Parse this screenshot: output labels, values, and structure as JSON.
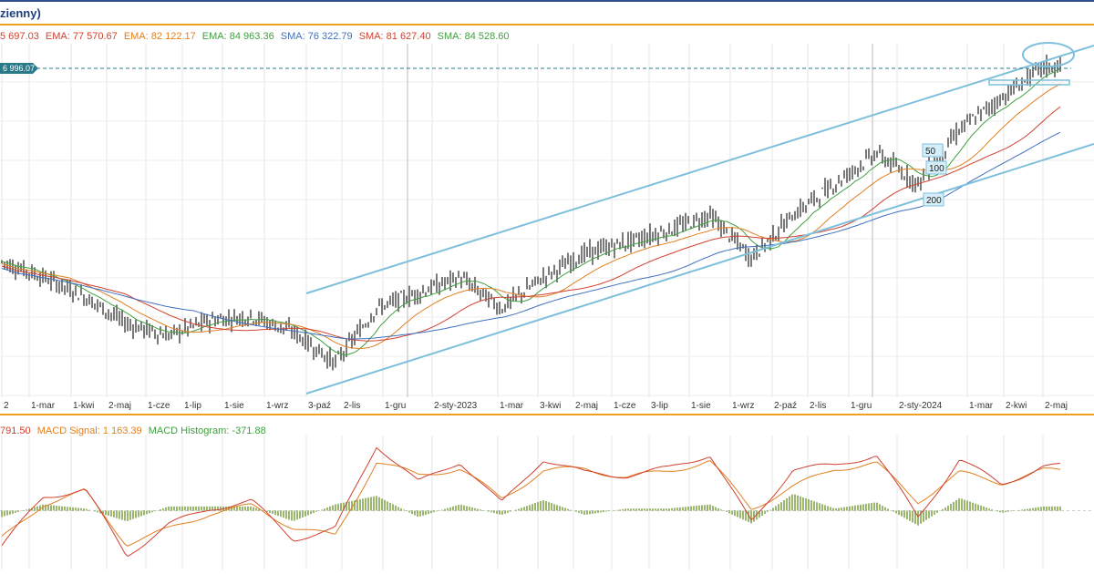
{
  "header": {
    "title": "zienny)"
  },
  "legend": [
    {
      "text": "5 697.03",
      "color": "#d04030"
    },
    {
      "text": "EMA: 77 570.67",
      "color": "#d04030"
    },
    {
      "text": "EMA: 82 122.17",
      "color": "#e08020"
    },
    {
      "text": "EMA: 84 963.36",
      "color": "#40a040"
    },
    {
      "text": "SMA: 76 322.79",
      "color": "#4070c0"
    },
    {
      "text": "SMA: 81 627.40",
      "color": "#d04030"
    },
    {
      "text": "SMA: 84 528.60",
      "color": "#40a040"
    }
  ],
  "price_label": "6 996.07",
  "ma_labels": [
    "50",
    "100",
    "200"
  ],
  "macd_legend": [
    {
      "text": "791.50",
      "color": "#d04030"
    },
    {
      "text": "MACD Signal: 1 163.39",
      "color": "#e08020"
    },
    {
      "text": "MACD Histogram: -371.88",
      "color": "#40a040"
    }
  ],
  "colors": {
    "channel": "#7ec0dc",
    "candles": "#222222",
    "ema_red": "#d04030",
    "ema_orange": "#e08020",
    "ema_green": "#40a040",
    "sma_blue": "#4070c0"
  },
  "chart_data": {
    "type": "line",
    "x_ticks": [
      "2",
      "1-mar",
      "1-kwi",
      "2-maj",
      "1-cze",
      "1-lip",
      "1-sie",
      "1-wrz",
      "3-paź",
      "2-lis",
      "1-gru",
      "2-sty-2023",
      "1-mar",
      "3-kwi",
      "2-maj",
      "1-cze",
      "3-lip",
      "1-sie",
      "1-wrz",
      "2-paź",
      "2-lis",
      "1-gru",
      "2-sty-2024",
      "1-mar",
      "2-kwi",
      "2-maj"
    ],
    "series": [
      {
        "name": "price",
        "values": [
          78000,
          76000,
          73500,
          70000,
          68500,
          70500,
          71000,
          69000,
          65000,
          72000,
          74000,
          76000,
          72000,
          76000,
          79000,
          80500,
          82000,
          84000,
          78500,
          84000,
          88000,
          92000,
          88000,
          95000,
          99000,
          103000
        ]
      },
      {
        "name": "MACD",
        "values": [
          -1500,
          600,
          900,
          -1900,
          -600,
          100,
          400,
          -1200,
          -800,
          2800,
          1200,
          2100,
          300,
          2200,
          1600,
          1500,
          1800,
          2400,
          -500,
          1800,
          1900,
          2400,
          -300,
          2200,
          1100,
          1900
        ]
      },
      {
        "name": "MACD Signal",
        "values": [
          -1200,
          300,
          800,
          -1400,
          -800,
          -100,
          200,
          -700,
          -1100,
          2100,
          1500,
          1800,
          500,
          1700,
          1800,
          1400,
          1700,
          2100,
          100,
          1000,
          1800,
          2000,
          400,
          1600,
          1200,
          1700
        ]
      }
    ]
  }
}
